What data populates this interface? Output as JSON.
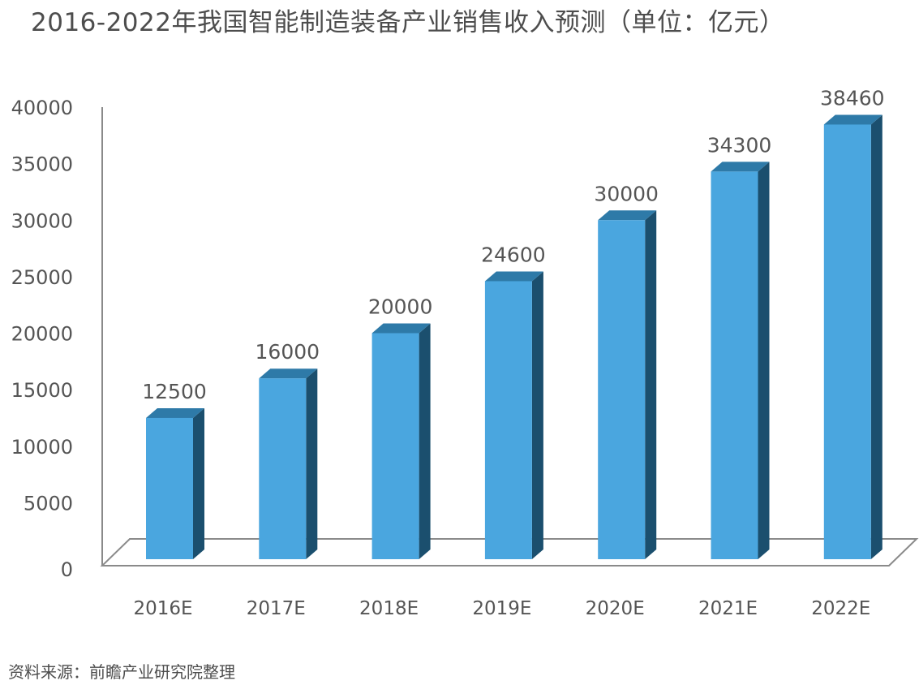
{
  "chart_data": {
    "type": "bar",
    "title": "2016-2022年我国智能制造装备产业销售收入预测（单位：亿元）",
    "categories": [
      "2016E",
      "2017E",
      "2018E",
      "2019E",
      "2020E",
      "2021E",
      "2022E"
    ],
    "values": [
      12500,
      16000,
      20000,
      24600,
      30000,
      34300,
      38460
    ],
    "value_labels": [
      "12500",
      "16000",
      "20000",
      "24600",
      "30000",
      "34300",
      "38460"
    ],
    "ylim": [
      0,
      40000
    ],
    "y_ticks": [
      "0",
      "5000",
      "10000",
      "15000",
      "20000",
      "25000",
      "30000",
      "35000",
      "40000"
    ],
    "xlabel": "",
    "ylabel": "",
    "grid": false,
    "style": "3d-column",
    "colors": {
      "bar_front": "#4aa6df",
      "bar_side": "#1b4f6e",
      "bar_top": "#2e7aa8",
      "axis": "#8a8a8a"
    }
  },
  "footer": {
    "source": "资料来源：前瞻产业研究院整理"
  }
}
